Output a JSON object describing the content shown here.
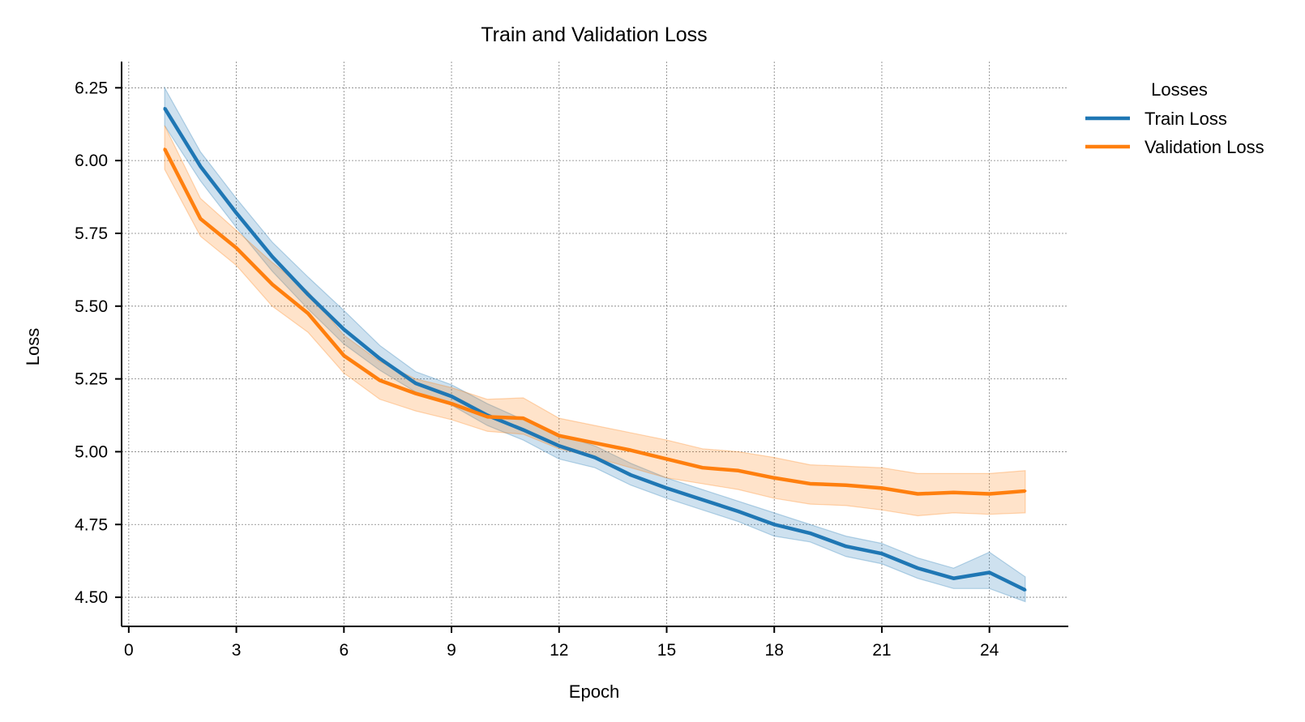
{
  "chart_data": {
    "type": "line",
    "title": "Train and Validation Loss",
    "xlabel": "Epoch",
    "ylabel": "Loss",
    "xlim": [
      -0.2,
      26.2
    ],
    "ylim": [
      4.4,
      6.34
    ],
    "xticks": [
      0,
      3,
      6,
      9,
      12,
      15,
      18,
      21,
      24
    ],
    "yticks": [
      4.5,
      4.75,
      5.0,
      5.25,
      5.5,
      5.75,
      6.0,
      6.25
    ],
    "grid": true,
    "legend": {
      "title": "Losses",
      "placement": "outside-top-right"
    },
    "x": [
      1,
      2,
      3,
      4,
      5,
      6,
      7,
      8,
      9,
      10,
      11,
      12,
      13,
      14,
      15,
      16,
      17,
      18,
      19,
      20,
      21,
      22,
      23,
      24,
      25
    ],
    "series": [
      {
        "name": "Train Loss",
        "color": "#1f77b4",
        "values": [
          6.18,
          5.98,
          5.82,
          5.67,
          5.54,
          5.42,
          5.32,
          5.235,
          5.19,
          5.125,
          5.075,
          5.02,
          4.98,
          4.92,
          4.875,
          4.835,
          4.795,
          4.75,
          4.72,
          4.675,
          4.65,
          4.6,
          4.565,
          4.585,
          4.525
        ],
        "lower": [
          6.12,
          5.93,
          5.77,
          5.62,
          5.49,
          5.37,
          5.28,
          5.205,
          5.16,
          5.09,
          5.04,
          4.975,
          4.945,
          4.885,
          4.84,
          4.8,
          4.76,
          4.71,
          4.69,
          4.64,
          4.615,
          4.565,
          4.53,
          4.53,
          4.485
        ],
        "upper": [
          6.25,
          6.03,
          5.87,
          5.72,
          5.6,
          5.485,
          5.365,
          5.275,
          5.23,
          5.165,
          5.11,
          5.06,
          5.02,
          4.96,
          4.91,
          4.87,
          4.83,
          4.79,
          4.75,
          4.71,
          4.685,
          4.635,
          4.6,
          4.655,
          4.57
        ]
      },
      {
        "name": "Validation Loss",
        "color": "#ff7f0e",
        "values": [
          6.04,
          5.8,
          5.7,
          5.575,
          5.475,
          5.33,
          5.245,
          5.2,
          5.165,
          5.12,
          5.115,
          5.055,
          5.03,
          5.005,
          4.975,
          4.945,
          4.935,
          4.91,
          4.89,
          4.885,
          4.875,
          4.855,
          4.86,
          4.855,
          4.865
        ],
        "lower": [
          5.97,
          5.74,
          5.64,
          5.5,
          5.41,
          5.27,
          5.18,
          5.14,
          5.11,
          5.07,
          5.06,
          5.01,
          4.98,
          4.945,
          4.91,
          4.89,
          4.87,
          4.84,
          4.82,
          4.815,
          4.8,
          4.78,
          4.79,
          4.785,
          4.79
        ],
        "upper": [
          6.12,
          5.87,
          5.76,
          5.65,
          5.55,
          5.4,
          5.31,
          5.25,
          5.22,
          5.18,
          5.185,
          5.115,
          5.09,
          5.065,
          5.04,
          5.01,
          5.0,
          4.98,
          4.955,
          4.95,
          4.945,
          4.925,
          4.925,
          4.925,
          4.935
        ]
      }
    ]
  }
}
